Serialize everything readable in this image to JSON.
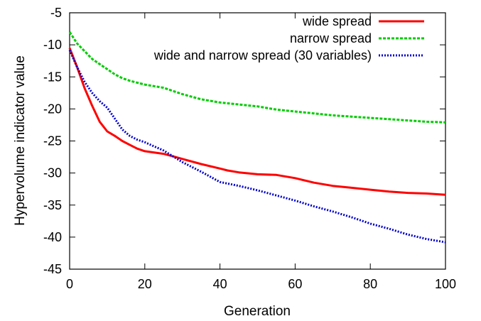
{
  "chart_data": {
    "type": "line",
    "xlabel": "Generation",
    "ylabel": "Hypervolume indicator value",
    "xlim": [
      0,
      100
    ],
    "ylim": [
      -45,
      -5
    ],
    "xticks": [
      "0",
      "20",
      "40",
      "60",
      "80",
      "100"
    ],
    "yticks": [
      "-5",
      "-10",
      "-15",
      "-20",
      "-25",
      "-30",
      "-35",
      "-40",
      "-45"
    ],
    "grid": false,
    "legend_position": "top-right",
    "series": [
      {
        "name": "wide spread",
        "color": "#ff0000",
        "style": "solid",
        "x": [
          0,
          2,
          4,
          6,
          8,
          10,
          12,
          14,
          16,
          18,
          20,
          25,
          30,
          35,
          40,
          42,
          45,
          50,
          55,
          60,
          65,
          70,
          75,
          80,
          85,
          90,
          95,
          100
        ],
        "y": [
          -10.5,
          -13.5,
          -16.8,
          -19.5,
          -22.0,
          -23.5,
          -24.2,
          -25.0,
          -25.6,
          -26.2,
          -26.6,
          -27.0,
          -27.8,
          -28.6,
          -29.3,
          -29.6,
          -29.9,
          -30.2,
          -30.3,
          -30.8,
          -31.5,
          -32.0,
          -32.3,
          -32.6,
          -32.9,
          -33.1,
          -33.2,
          -33.4
        ]
      },
      {
        "name": "narrow spread",
        "color": "#00cc00",
        "style": "dashed",
        "x": [
          0,
          2,
          4,
          6,
          8,
          10,
          12,
          14,
          16,
          18,
          20,
          25,
          30,
          35,
          40,
          45,
          50,
          55,
          60,
          65,
          70,
          75,
          80,
          85,
          90,
          95,
          100
        ],
        "y": [
          -8.0,
          -9.8,
          -11.0,
          -12.2,
          -13.0,
          -13.8,
          -14.6,
          -15.2,
          -15.6,
          -15.9,
          -16.2,
          -16.7,
          -17.7,
          -18.5,
          -19.0,
          -19.3,
          -19.6,
          -20.1,
          -20.4,
          -20.7,
          -21.0,
          -21.2,
          -21.4,
          -21.6,
          -21.8,
          -22.0,
          -22.1
        ]
      },
      {
        "name": "wide and narrow spread (30 variables)",
        "color": "#0000cc",
        "style": "dotted",
        "x": [
          0,
          2,
          4,
          6,
          8,
          10,
          12,
          14,
          16,
          18,
          20,
          25,
          30,
          35,
          40,
          45,
          50,
          55,
          60,
          65,
          70,
          75,
          80,
          85,
          90,
          95,
          100
        ],
        "y": [
          -10.8,
          -13.5,
          -15.8,
          -17.5,
          -18.8,
          -19.8,
          -21.5,
          -23.2,
          -24.2,
          -24.8,
          -25.2,
          -26.5,
          -28.3,
          -29.8,
          -31.4,
          -32.0,
          -32.7,
          -33.5,
          -34.3,
          -35.2,
          -36.0,
          -36.9,
          -37.9,
          -38.7,
          -39.6,
          -40.3,
          -40.8
        ]
      }
    ]
  }
}
